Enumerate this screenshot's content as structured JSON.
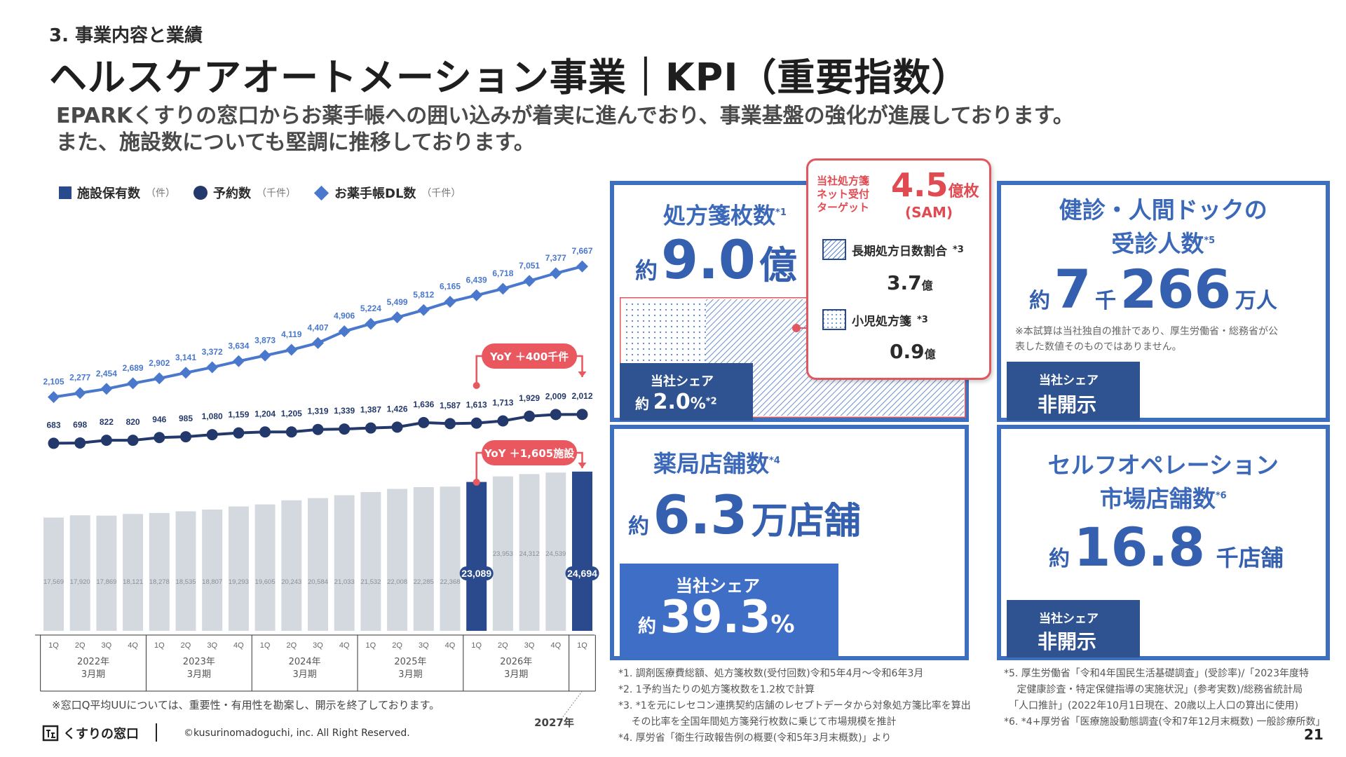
{
  "header": {
    "section": "3. 事業内容と業績",
    "title": "ヘルスケアオートメーション事業｜KPI（重要指数）",
    "subtitle_line1": "EPARKくすりの窓口からお薬手帳への囲い込みが着実に進んでおり、事業基盤の強化が進展しております。",
    "subtitle_line2": "また、施設数についても堅調に推移しております。"
  },
  "legend": {
    "facilities": "施設保有数",
    "facilities_unit": "（件）",
    "reservations": "予約数",
    "reservations_unit": "（千件）",
    "dl": "お薬手帳DL数",
    "dl_unit": "（千件）"
  },
  "chart_data": {
    "type": "bar+line",
    "categories": [
      "1Q",
      "2Q",
      "3Q",
      "4Q",
      "1Q",
      "2Q",
      "3Q",
      "4Q",
      "1Q",
      "2Q",
      "3Q",
      "4Q",
      "1Q",
      "2Q",
      "3Q",
      "4Q",
      "1Q",
      "2Q",
      "3Q",
      "4Q",
      "1Q"
    ],
    "fiscal_years": [
      "2022年\n3月期",
      "2023年\n3月期",
      "2024年\n3月期",
      "2025年\n3月期",
      "2026年\n3月期",
      "2027年\n3月期"
    ],
    "series": [
      {
        "name": "施設保有数",
        "type": "bar",
        "values": [
          17569,
          17920,
          17869,
          18121,
          18278,
          18535,
          18807,
          19293,
          19605,
          20243,
          20584,
          21033,
          21532,
          22008,
          22285,
          22368,
          23089,
          23953,
          24312,
          24539,
          24694
        ],
        "highlight": [
          16,
          20
        ]
      },
      {
        "name": "予約数",
        "type": "line",
        "values": [
          683,
          698,
          822,
          820,
          946,
          985,
          1080,
          1159,
          1204,
          1205,
          1319,
          1339,
          1387,
          1426,
          1636,
          1587,
          1613,
          1713,
          1929,
          2009,
          2012
        ]
      },
      {
        "name": "お薬手帳DL数",
        "type": "line",
        "values": [
          2105,
          2277,
          2454,
          2689,
          2902,
          3141,
          3372,
          3634,
          3873,
          4119,
          4407,
          4906,
          5224,
          5499,
          5812,
          6165,
          6439,
          6718,
          7051,
          7377,
          7667
        ]
      }
    ],
    "yoy_lines": "YoY ＋400千件",
    "yoy_bars": "YoY ＋1,605施設",
    "colors": {
      "bar": "#d4d9e0",
      "bar_highlight": "#2b4a8e",
      "line_res": "#24396b",
      "line_dl": "#4a78cc",
      "yoy": "#e9575f"
    }
  },
  "chart_note": "※窓口Q平均UUについては、重要性・有用性を勘案し、開示を終了しております。",
  "kpi_prescription": {
    "label": "処方箋枚数",
    "note": "*1",
    "prefix": "約",
    "value": "9.0",
    "unit": "億",
    "share_label": "当社シェア",
    "share_prefix": "約",
    "share_value": "2.0",
    "share_unit": "%",
    "share_note": "*2"
  },
  "callout": {
    "label": "当社処方箋\nネット受付\nターゲット",
    "value": "4.5",
    "unit": "億枚",
    "sam": "(SAM)",
    "long_label": "長期処方日数割合",
    "long_note": "*3",
    "long_value": "3.7",
    "long_unit": "億",
    "child_label": "小児処方箋",
    "child_note": "*3",
    "child_value": "0.9",
    "child_unit": "億"
  },
  "kpi_checkup": {
    "label_line1": "健診・人間ドックの",
    "label_line2": "受診人数",
    "note": "*5",
    "prefix": "約",
    "value1": "7",
    "mid": "千",
    "value2": "266",
    "unit": "万人",
    "disclaimer_line1": "※本試算は当社独自の推計であり、厚生労働省・総務省が公",
    "disclaimer_line2": "表した数値そのものではありません。",
    "share_label": "当社シェア",
    "share_value": "非開示"
  },
  "kpi_pharmacy": {
    "label": "薬局店舗数",
    "note": "*4",
    "prefix": "約",
    "value": "6.3",
    "unit": "万店舗",
    "share_label": "当社シェア",
    "share_prefix": "約",
    "share_value": "39.3",
    "share_unit": "%"
  },
  "kpi_self": {
    "label_line1": "セルフオペレーション",
    "label_line2": "市場店舗数",
    "note": "*6",
    "prefix": "約",
    "value": "16.8",
    "unit": "千店舗",
    "share_label": "当社シェア",
    "share_value": "非開示"
  },
  "footnotes_left": [
    "*1. 調剤医療費総額、処方箋枚数(受付回数)令和5年4月～令和6年3月",
    "*2. 1予約当たりの処方箋枚数を1.2枚で計算",
    "*3. *1を元にレセコン連携契約店舗のレセプトデータから対象処方箋比率を算出",
    "　 その比率を全国年間処方箋発行枚数に乗じて市場規模を推計",
    "*4. 厚労省「衛生行政報告例の概要(令和5年3月末概数)」より"
  ],
  "footnotes_right": [
    "*5. 厚生労働省「令和4年国民生活基礎調査」(受診率)/「2023年度特",
    "　 定健康診査・特定保健指導の実施状況」(参考実数)/総務省統計局",
    "　「人口推計」(2022年10月1日現在、20歳以上人口の算出に使用)",
    "*6. *4+厚労省「医療施設動態調査(令和7年12月末概数) 一般診療所数」"
  ],
  "footer": {
    "logo_text": "くすりの窓口",
    "copyright": "©kusurinomadoguchi, inc. All Right Reserved.",
    "page": "21"
  }
}
